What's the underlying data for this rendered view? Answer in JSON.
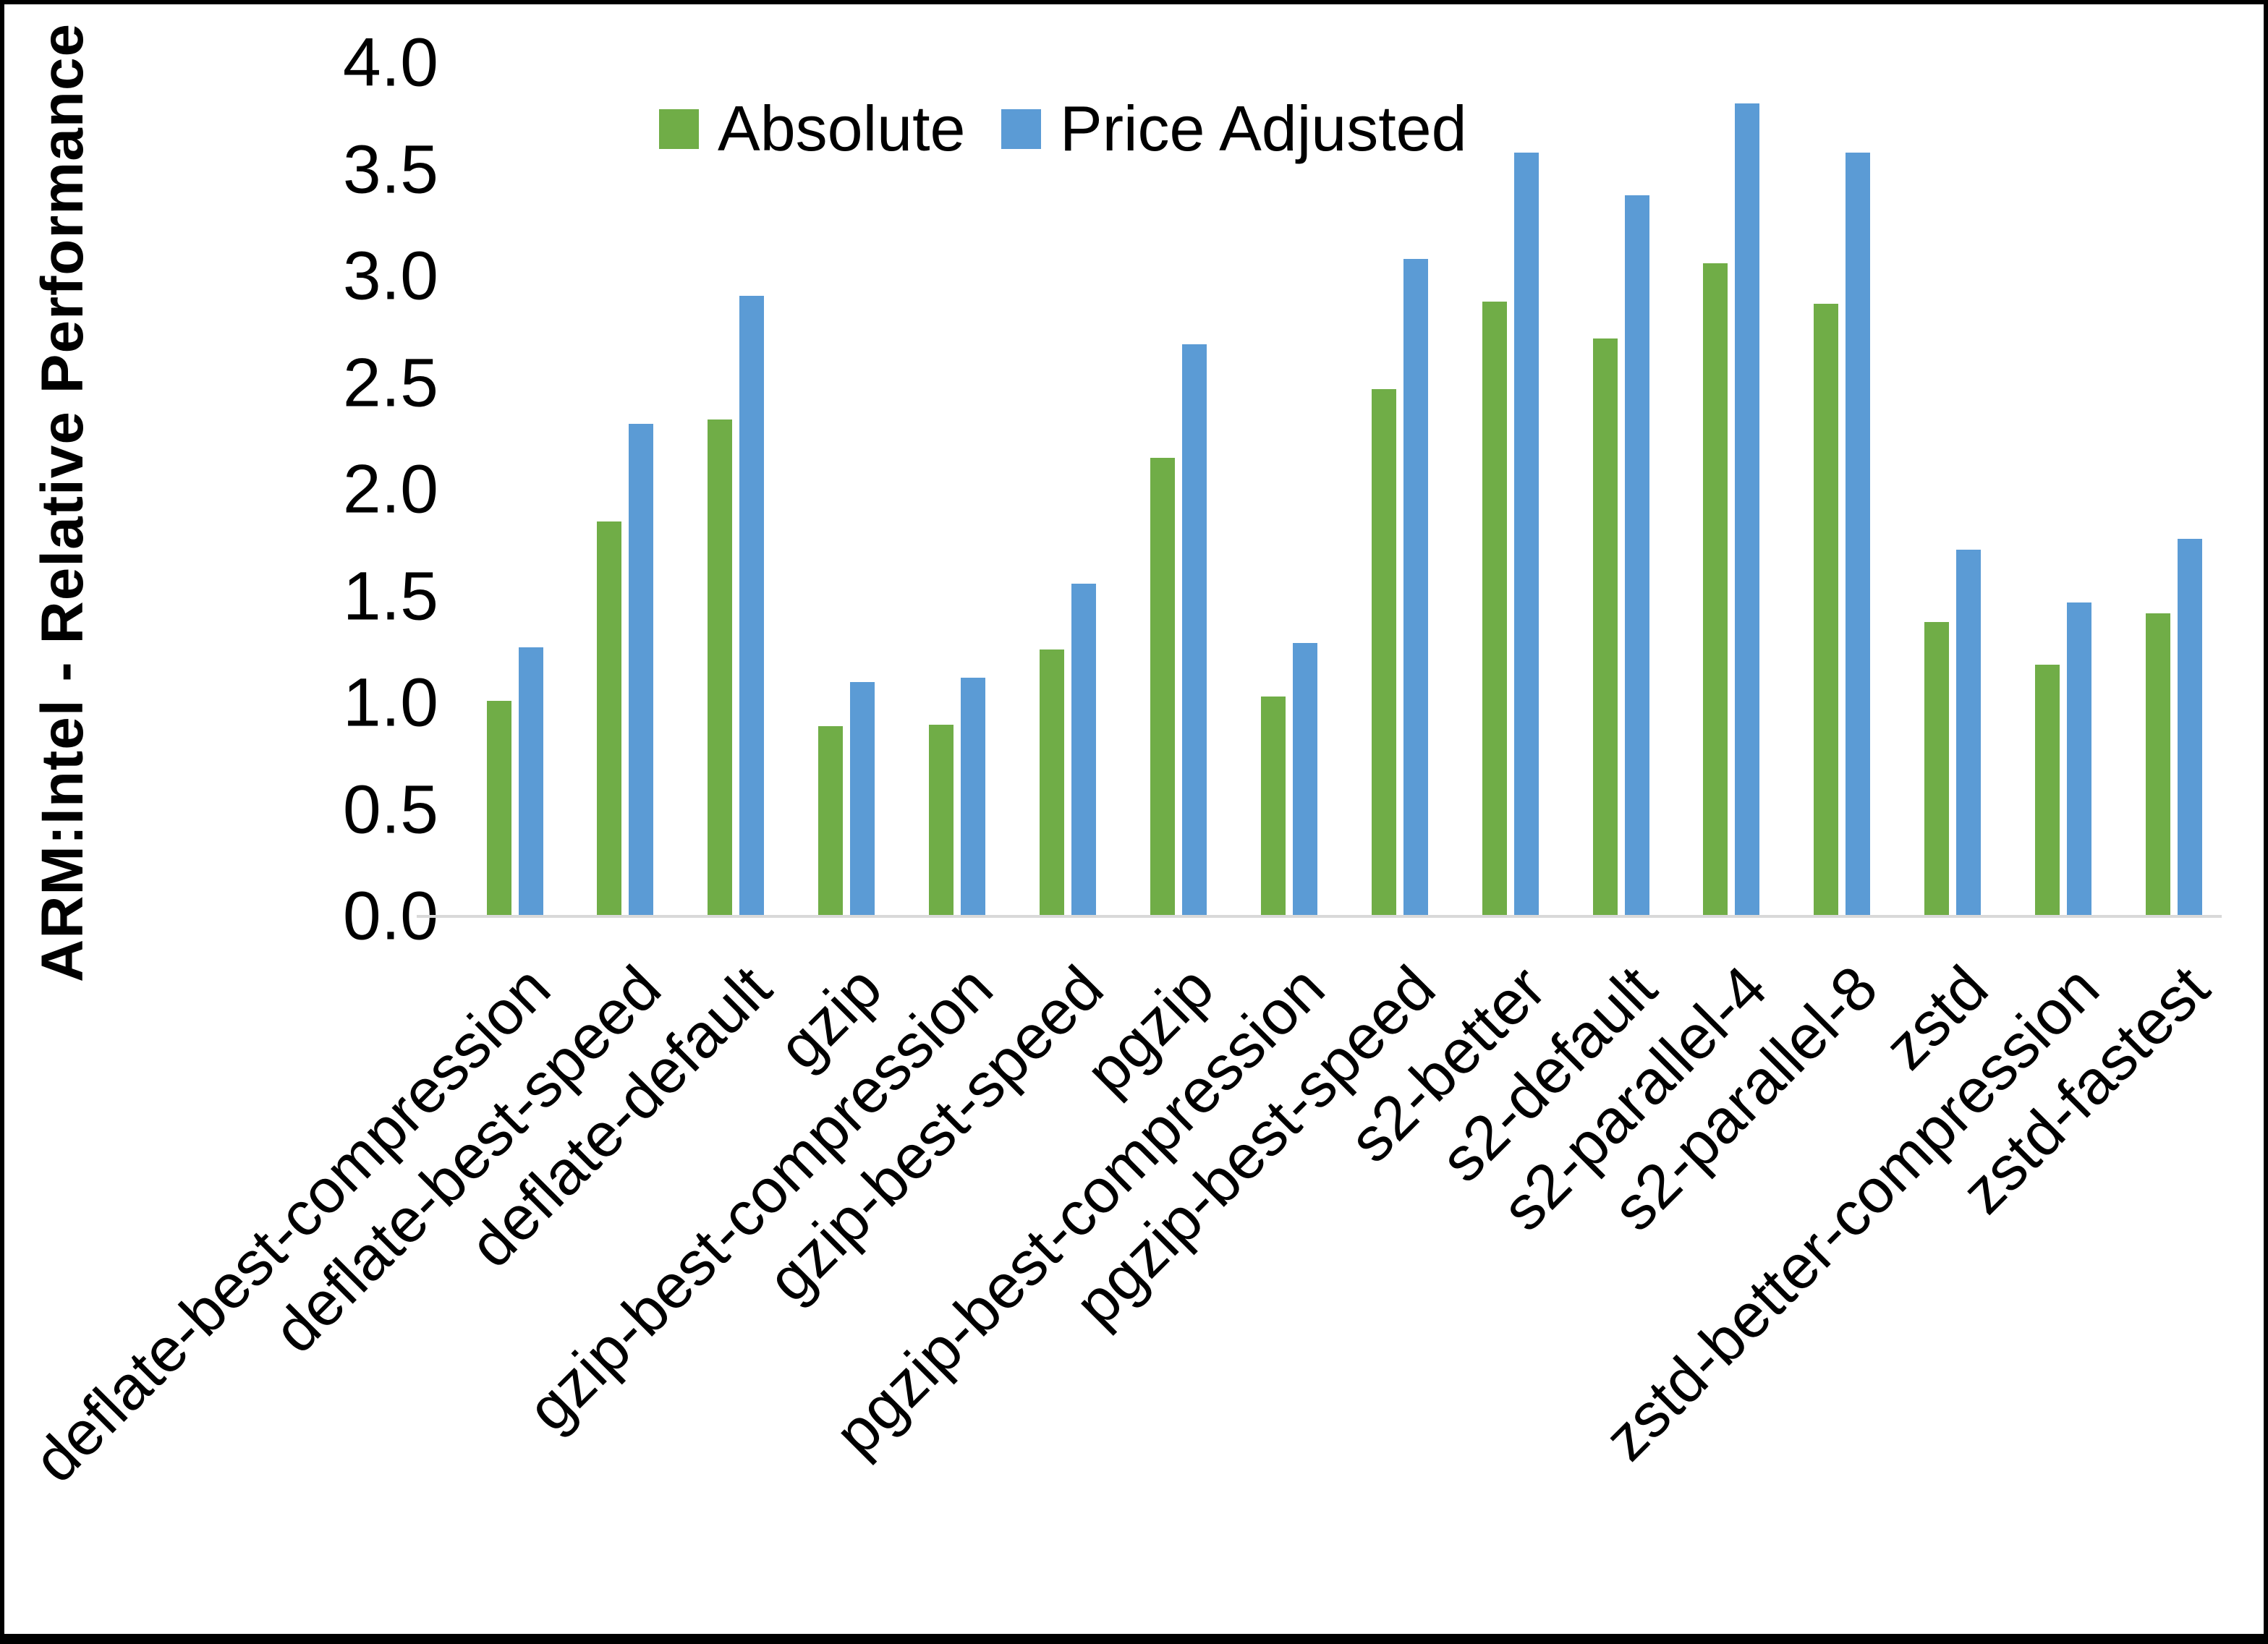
{
  "chart_data": {
    "type": "bar",
    "title": "",
    "ylabel": "ARM:Intel - Relative Performance",
    "xlabel": "",
    "ylim": [
      0.0,
      4.0
    ],
    "ytick_step": 0.5,
    "y_ticks": [
      "0.0",
      "0.5",
      "1.0",
      "1.5",
      "2.0",
      "2.5",
      "3.0",
      "3.5",
      "4.0"
    ],
    "grid": false,
    "legend_position": "top",
    "axis_line_color": "#d9d9d9",
    "categories": [
      "deflate-best-compression",
      "deflate-best-speed",
      "deflate-default",
      "gzip",
      "gzip-best-compression",
      "gzip-best-speed",
      "pgzip",
      "pgzip-best-compression",
      "pgzip-best-speed",
      "s2-better",
      "s2-default",
      "s2-parallel-4",
      "s2-parallel-8",
      "zstd",
      "zstd-better-compression",
      "zstd-fastest"
    ],
    "series": [
      {
        "name": "Absolute",
        "color": "#70AD47",
        "values": [
          1.01,
          1.85,
          2.33,
          0.89,
          0.9,
          1.25,
          2.15,
          1.03,
          2.47,
          2.88,
          2.71,
          3.06,
          2.87,
          1.38,
          1.18,
          1.42
        ]
      },
      {
        "name": "Price Adjusted",
        "color": "#5B9BD5",
        "values": [
          1.26,
          2.31,
          2.91,
          1.1,
          1.12,
          1.56,
          2.68,
          1.28,
          3.08,
          3.58,
          3.38,
          3.81,
          3.58,
          1.72,
          1.47,
          1.77
        ]
      }
    ]
  }
}
